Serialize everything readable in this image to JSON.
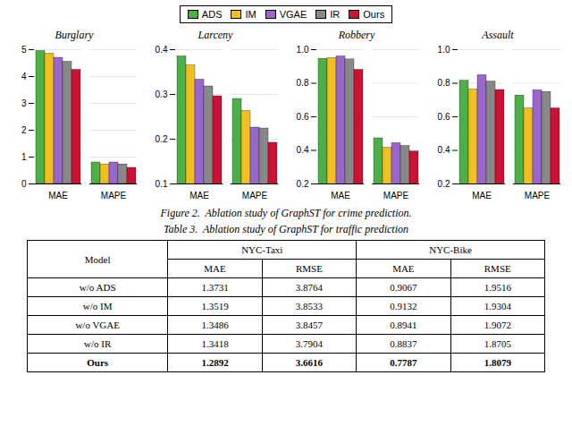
{
  "chart_data": [
    {
      "type": "bar",
      "title": "Burglary",
      "categories": [
        "MAE",
        "MAPE"
      ],
      "series": [
        {
          "name": "ADS",
          "color": "#4daf4a",
          "values": [
            4.95,
            0.8
          ]
        },
        {
          "name": "IM",
          "color": "#f0c020",
          "values": [
            4.85,
            0.73
          ]
        },
        {
          "name": "VGAE",
          "color": "#9966cc",
          "values": [
            4.7,
            0.8
          ]
        },
        {
          "name": "IR",
          "color": "#888888",
          "values": [
            4.55,
            0.73
          ]
        },
        {
          "name": "Ours",
          "color": "#cc1133",
          "values": [
            4.25,
            0.6
          ]
        }
      ],
      "ylim": [
        0,
        5
      ],
      "yticks": [
        0,
        1,
        2,
        3,
        4,
        5
      ],
      "grid": true,
      "legend": "top"
    },
    {
      "type": "bar",
      "title": "Larceny",
      "categories": [
        "MAE",
        "MAPE"
      ],
      "series": [
        {
          "name": "ADS",
          "color": "#4daf4a",
          "values": [
            0.385,
            0.29
          ]
        },
        {
          "name": "IM",
          "color": "#f0c020",
          "values": [
            0.365,
            0.263
          ]
        },
        {
          "name": "VGAE",
          "color": "#9966cc",
          "values": [
            0.333,
            0.226
          ]
        },
        {
          "name": "IR",
          "color": "#888888",
          "values": [
            0.318,
            0.224
          ]
        },
        {
          "name": "Ours",
          "color": "#cc1133",
          "values": [
            0.296,
            0.192
          ]
        }
      ],
      "ylim": [
        0.1,
        0.4
      ],
      "yticks": [
        0.1,
        0.2,
        0.3,
        0.4
      ],
      "grid": true,
      "legend": "top"
    },
    {
      "type": "bar",
      "title": "Robbery",
      "categories": [
        "MAE",
        "MAPE"
      ],
      "series": [
        {
          "name": "ADS",
          "color": "#4daf4a",
          "values": [
            0.945,
            0.472
          ]
        },
        {
          "name": "IM",
          "color": "#f0c020",
          "values": [
            0.95,
            0.415
          ]
        },
        {
          "name": "VGAE",
          "color": "#9966cc",
          "values": [
            0.96,
            0.443
          ]
        },
        {
          "name": "IR",
          "color": "#888888",
          "values": [
            0.942,
            0.427
          ]
        },
        {
          "name": "Ours",
          "color": "#cc1133",
          "values": [
            0.88,
            0.393
          ]
        }
      ],
      "ylim": [
        0.2,
        1.0
      ],
      "yticks": [
        0.2,
        0.4,
        0.6,
        0.8,
        {
          "value": 1.0,
          "label": "1.0"
        }
      ],
      "grid": true,
      "legend": "top"
    },
    {
      "type": "bar",
      "title": "Assault",
      "categories": [
        "MAE",
        "MAPE"
      ],
      "series": [
        {
          "name": "ADS",
          "color": "#4daf4a",
          "values": [
            0.815,
            0.727
          ]
        },
        {
          "name": "IM",
          "color": "#f0c020",
          "values": [
            0.762,
            0.65
          ]
        },
        {
          "name": "VGAE",
          "color": "#9966cc",
          "values": [
            0.848,
            0.758
          ]
        },
        {
          "name": "IR",
          "color": "#888888",
          "values": [
            0.81,
            0.748
          ]
        },
        {
          "name": "Ours",
          "color": "#cc1133",
          "values": [
            0.76,
            0.65
          ]
        }
      ],
      "ylim": [
        0.2,
        1.0
      ],
      "yticks": [
        0.2,
        0.4,
        0.6,
        0.8,
        {
          "value": 1.0,
          "label": "1.0"
        }
      ],
      "grid": true,
      "legend": "top"
    },
    {
      "type": "table",
      "title": "Table 3.  Ablation study of GraphST for traffic prediction",
      "row_header": "Model",
      "column_groups": [
        {
          "name": "NYC-Taxi",
          "columns": [
            "MAE",
            "RMSE"
          ]
        },
        {
          "name": "NYC-Bike",
          "columns": [
            "MAE",
            "RMSE"
          ]
        }
      ],
      "rows": [
        [
          "w/o ADS",
          "1.3731",
          "3.8764",
          "0.9067",
          "1.9516"
        ],
        [
          "w/o IM",
          "1.3519",
          "3.8533",
          "0.9132",
          "1.9304"
        ],
        [
          "w/o VGAE",
          "1.3486",
          "3.8457",
          "0.8941",
          "1.9072"
        ],
        [
          "w/o IR",
          "1.3418",
          "3.7904",
          "0.8837",
          "1.8705"
        ],
        [
          "Ours",
          "1.2892",
          "3.6616",
          "0.7787",
          "1.8079"
        ]
      ],
      "bold_row": "Ours"
    }
  ],
  "caption": "Figure 2.  Ablation study of GraphST for crime prediction."
}
